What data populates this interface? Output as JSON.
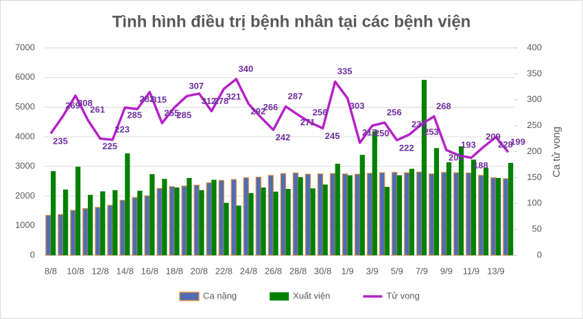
{
  "chart_data": {
    "type": "bar-line",
    "title": "Tình hình điều trị bệnh nhân tại các bệnh viện",
    "y2label": "Ca tử vong",
    "categories": [
      "8/8",
      null,
      "10/8",
      null,
      "12/8",
      null,
      "14/8",
      null,
      "16/8",
      null,
      "18/8",
      null,
      "20/8",
      null,
      "22/8",
      null,
      "24/8",
      null,
      "26/8",
      null,
      "28/8",
      null,
      "30/8",
      null,
      "1/9",
      null,
      "3/9",
      null,
      "5/9",
      null,
      "7/9",
      null,
      "9/9",
      null,
      "11/9",
      null,
      "13/9",
      null
    ],
    "ylim": [
      0,
      7000
    ],
    "yticks": [
      0,
      1000,
      2000,
      3000,
      4000,
      5000,
      6000,
      7000
    ],
    "y2lim": [
      0,
      400
    ],
    "y2ticks": [
      0,
      50,
      100,
      150,
      200,
      250,
      300,
      350,
      400
    ],
    "series": [
      {
        "name": "Ca nặng",
        "type": "bar",
        "color": "#4f6db4",
        "edgecolor": "#e0913f",
        "values": [
          1350,
          1380,
          1520,
          1580,
          1620,
          1690,
          1860,
          1950,
          2010,
          2260,
          2320,
          2340,
          2370,
          2450,
          2530,
          2560,
          2620,
          2640,
          2700,
          2760,
          2780,
          2740,
          2750,
          2760,
          2750,
          2740,
          2770,
          2790,
          2800,
          2790,
          2810,
          2750,
          2800,
          2790,
          2780,
          2700,
          2620,
          2590
        ]
      },
      {
        "name": "Xuất viện",
        "type": "bar",
        "color": "#008000",
        "values": [
          2840,
          2220,
          2990,
          2040,
          2160,
          2200,
          3440,
          2180,
          2740,
          2580,
          2290,
          2610,
          2200,
          2550,
          1770,
          1680,
          2100,
          2290,
          2150,
          2240,
          2640,
          2260,
          2390,
          3090,
          2700,
          3390,
          4190,
          2310,
          2700,
          2920,
          5920,
          3620,
          3140,
          3680,
          3230,
          2950,
          2610,
          3120
        ]
      },
      {
        "name": "Tử vong",
        "type": "line",
        "axis": "y2",
        "color": "#b620c8",
        "values": [
          235,
          269,
          308,
          261,
          225,
          223,
          285,
          282,
          315,
          255,
          285,
          307,
          312,
          278,
          321,
          340,
          292,
          266,
          242,
          287,
          271,
          256,
          245,
          335,
          303,
          217,
          250,
          256,
          222,
          233,
          253,
          268,
          203,
          193,
          188,
          209,
          228,
          199
        ]
      }
    ]
  }
}
